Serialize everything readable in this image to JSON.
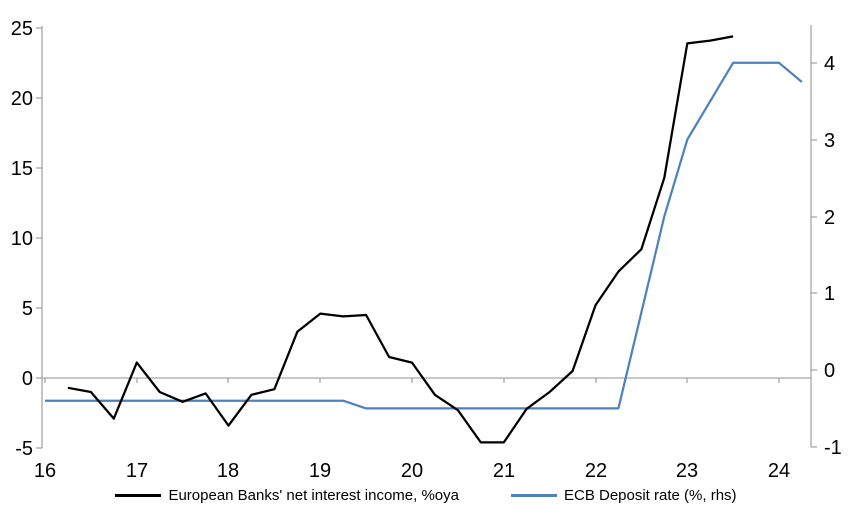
{
  "page": {
    "background": "#ffffff"
  },
  "chart_data": {
    "type": "line",
    "title": "",
    "grid": "horizontal-zero-line-only",
    "legend_position": "bottom-center",
    "axis_color": "#a6a6a6",
    "text_color": "#000000",
    "x_axis": {
      "tick_values": [
        16,
        17,
        18,
        19,
        20,
        21,
        22,
        23,
        24
      ],
      "tick_labels": [
        "16",
        "17",
        "18",
        "19",
        "20",
        "21",
        "22",
        "23",
        "24"
      ],
      "range": [
        16,
        24.35
      ]
    },
    "left_axis": {
      "tick_values": [
        25,
        20,
        15,
        10,
        5,
        0,
        -5
      ],
      "tick_labels": [
        "25",
        "20",
        "15",
        "10",
        "5",
        "0",
        "-5"
      ],
      "range": [
        -5,
        25
      ]
    },
    "right_axis": {
      "tick_values": [
        4,
        3,
        2,
        1,
        0,
        -1
      ],
      "tick_labels": [
        "4",
        "3",
        "2",
        "1",
        "0",
        "-1"
      ],
      "range": [
        -1,
        4.5
      ]
    },
    "series": [
      {
        "name": "European Banks' net interest income, %oya",
        "color": "#000000",
        "axis": "left",
        "x": [
          16.25,
          16.5,
          16.75,
          17.0,
          17.25,
          17.5,
          17.75,
          18.0,
          18.25,
          18.5,
          18.75,
          19.0,
          19.25,
          19.5,
          19.75,
          20.0,
          20.25,
          20.5,
          20.75,
          21.0,
          21.25,
          21.5,
          21.75,
          22.0,
          22.25,
          22.5,
          22.75,
          23.0,
          23.25,
          23.5
        ],
        "values": [
          -0.7,
          -1.0,
          -2.9,
          1.1,
          -1.0,
          -1.7,
          -1.1,
          -3.4,
          -1.2,
          -0.8,
          3.3,
          4.6,
          4.4,
          4.5,
          1.5,
          1.1,
          -1.2,
          -2.3,
          -4.6,
          -4.6,
          -2.2,
          -1.0,
          0.5,
          5.2,
          7.6,
          9.2,
          14.3,
          23.9,
          24.1,
          24.4
        ]
      },
      {
        "name": "ECB Deposit rate (%, rhs)",
        "color": "#4f81bd",
        "axis": "right",
        "x": [
          16.0,
          19.25,
          19.5,
          22.25,
          22.5,
          22.75,
          23.0,
          23.25,
          23.5,
          24.0,
          24.25
        ],
        "values": [
          -0.4,
          -0.4,
          -0.5,
          -0.5,
          0.75,
          2.0,
          3.0,
          3.5,
          4.0,
          4.0,
          3.75
        ]
      }
    ]
  },
  "legend": {
    "items": [
      {
        "label": "European Banks' net interest income, %oya"
      },
      {
        "label": "ECB Deposit rate (%, rhs)"
      }
    ]
  }
}
